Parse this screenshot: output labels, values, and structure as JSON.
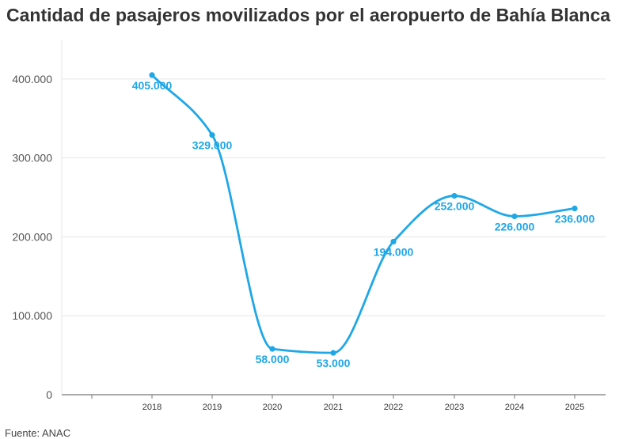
{
  "title": "Cantidad de pasajeros movilizados por el aeropuerto de Bahía Blanca",
  "source": "Fuente: ANAC",
  "colors": {
    "line": "#1fa7e6",
    "grid": "#e6e6e6",
    "axis": "#777777",
    "text": "#333333"
  },
  "chart_data": {
    "type": "line",
    "title": "Cantidad de pasajeros movilizados por el aeropuerto de Bahía Blanca",
    "xlabel": "",
    "ylabel": "",
    "x": [
      "2018",
      "2019",
      "2020",
      "2021",
      "2022",
      "2023",
      "2024",
      "2025"
    ],
    "series": [
      {
        "values": [
          405000,
          329000,
          58000,
          53000,
          194000,
          252000,
          226000,
          236000
        ],
        "labels": [
          "405.000",
          "329.000",
          "58.000",
          "53.000",
          "194.000",
          "252.000",
          "226.000",
          "236.000"
        ]
      }
    ],
    "yticks": [
      {
        "value": 0,
        "label": "0"
      },
      {
        "value": 100000,
        "label": "100.000"
      },
      {
        "value": 200000,
        "label": "200.000"
      },
      {
        "value": 300000,
        "label": "300.000"
      },
      {
        "value": 400000,
        "label": "400.000"
      }
    ],
    "ylim": [
      0,
      450000
    ],
    "grid": true,
    "smooth": true,
    "legend": "none"
  }
}
